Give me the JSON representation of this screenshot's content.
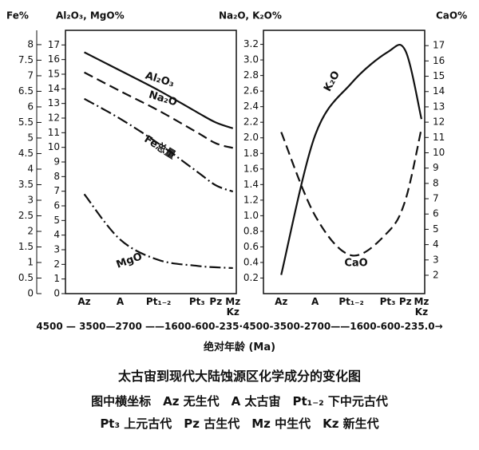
{
  "chart_data": [
    {
      "type": "line",
      "categories": [
        "Az",
        "A",
        "Pt₁₋₂",
        "Pt₃",
        "Pz",
        "Mz Kz"
      ],
      "y_title": "Fe%",
      "y2_title": "Al₂O₃, MgO%",
      "ylim": [
        0,
        8.46
      ],
      "yticks": [
        0,
        0.5,
        1,
        1.5,
        2,
        2.5,
        3,
        3.5,
        4,
        4.5,
        5,
        5.5,
        6,
        6.5,
        7,
        7.5,
        8
      ],
      "y2lim": [
        0,
        18
      ],
      "y2ticks": [
        0,
        1,
        2,
        3,
        4,
        5,
        6,
        7,
        8,
        9,
        10,
        11,
        12,
        13,
        14,
        15,
        16,
        17
      ],
      "series": [
        {
          "name": "Al₂O₃",
          "axis": "y2",
          "line_style": "solid",
          "color": "#111",
          "values": [
            16.5,
            15.25,
            13.9,
            12.4,
            11.7,
            11.3
          ]
        },
        {
          "name": "Na₂O",
          "axis": "y3",
          "line_style": "dashed",
          "color": "#111",
          "values": [
            2.84,
            2.6,
            2.35,
            2.07,
            1.93,
            1.87
          ]
        },
        {
          "name": "Fe总量",
          "axis": "y",
          "line_style": "dashdot",
          "color": "#111",
          "values": [
            6.26,
            5.62,
            4.82,
            3.92,
            3.48,
            3.28
          ]
        },
        {
          "name": "MgO",
          "axis": "y2",
          "line_style": "dashdot",
          "color": "#111",
          "values": [
            6.8,
            3.7,
            2.3,
            1.9,
            1.8,
            1.75
          ]
        }
      ]
    },
    {
      "type": "line",
      "categories": [
        "Az",
        "A",
        "Pt₁₋₂",
        "Pt₃",
        "Pz",
        "Mz Kz"
      ],
      "y_title": "Na₂O, K₂O%",
      "y2_title": "CaO%",
      "ylim": [
        0,
        3.38
      ],
      "yticks": [
        0.2,
        0.4,
        0.6,
        0.8,
        {
          "value": 1,
          "label": "1.0"
        },
        1.2,
        1.4,
        1.6,
        1.8,
        {
          "value": 2,
          "label": "2.0"
        },
        2.2,
        2.4,
        2.6,
        2.8,
        {
          "value": 3,
          "label": "3.0"
        },
        3.2
      ],
      "y2lim": [
        0.8,
        18
      ],
      "y2ticks": [
        2,
        3,
        4,
        5,
        6,
        7,
        8,
        9,
        10,
        11,
        12,
        13,
        14,
        15,
        16,
        17
      ],
      "series": [
        {
          "name": "K₂O",
          "axis": "y",
          "line_style": "solid",
          "color": "#111",
          "values": [
            0.24,
            2.03,
            2.7,
            3.1,
            3.12,
            2.24
          ]
        },
        {
          "name": "CaO",
          "axis": "y2",
          "line_style": "dashed",
          "color": "#111",
          "values": [
            11.35,
            5.9,
            3.3,
            4.8,
            6.9,
            11.6
          ]
        }
      ]
    }
  ],
  "age_scale": "4500 — 3500—2700 ——1600-600-235·4500-3500-2700——1600-600-235.0→",
  "x_title": "绝对年龄 (Ma)",
  "caption": {
    "title": "太古宙到现代大陆蚀源区化学成分的变化图",
    "lines": [
      "图中横坐标　Az 无生代　A 太古宙　Pt₁₋₂ 下中元古代",
      "Pt₃ 上元古代　Pz 古生代　Mz 中生代　Kz 新生代"
    ]
  }
}
